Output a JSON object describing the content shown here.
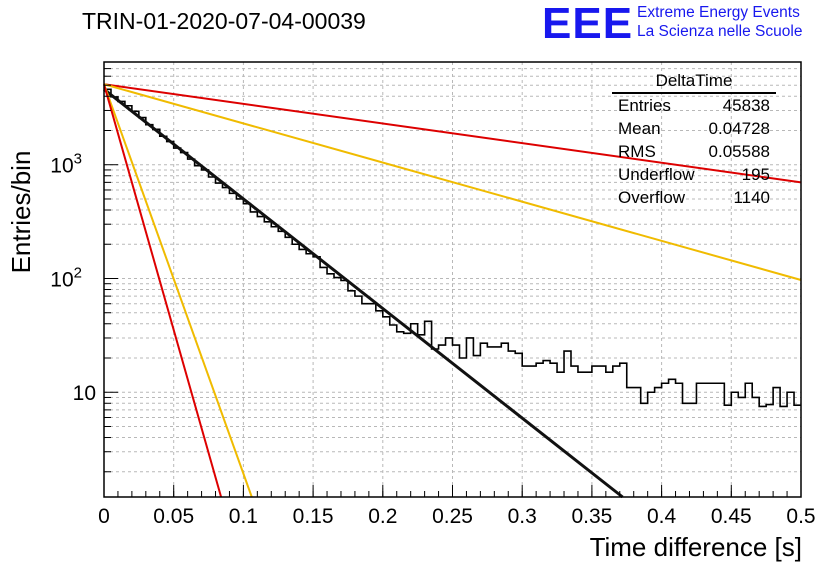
{
  "plot_title": "TRIN-01-2020-07-04-00039",
  "logo": {
    "mark": "EEE",
    "line1": "Extreme Energy Events",
    "line2": "La Scienza nelle Scuole",
    "color": "#1818ee"
  },
  "stats": {
    "title": "DeltaTime",
    "rows": [
      {
        "label": "Entries",
        "value": "45838"
      },
      {
        "label": "Mean",
        "value": "0.04728"
      },
      {
        "label": "RMS",
        "value": "0.05588"
      },
      {
        "label": "Underflow",
        "value": "195"
      },
      {
        "label": "Overflow",
        "value": "1140"
      }
    ]
  },
  "chart_data": {
    "type": "line",
    "xlabel": "Time difference [s]",
    "ylabel": "Entries/bin",
    "xlim": [
      0,
      0.5
    ],
    "ylim": [
      1.2,
      8000
    ],
    "yscale": "log",
    "grid": true,
    "x_ticks": [
      "0",
      "0.05",
      "0.1",
      "0.15",
      "0.2",
      "0.25",
      "0.3",
      "0.35",
      "0.4",
      "0.45",
      "0.5"
    ],
    "y_ticks": [
      {
        "value": 10,
        "label": "10"
      },
      {
        "value": 100,
        "label": "10",
        "exp": "2"
      },
      {
        "value": 1000,
        "label": "10",
        "exp": "3"
      }
    ],
    "histogram": {
      "bin_width": 0.005,
      "color": "#000000",
      "values": [
        4600,
        3950,
        3600,
        3300,
        2950,
        2600,
        2250,
        2050,
        1780,
        1600,
        1400,
        1280,
        1120,
        980,
        900,
        780,
        690,
        630,
        560,
        500,
        455,
        385,
        350,
        315,
        285,
        260,
        230,
        200,
        180,
        165,
        155,
        125,
        110,
        102,
        96,
        78,
        70,
        60,
        60,
        52,
        46,
        39,
        34,
        33,
        40,
        32,
        42,
        24,
        26,
        30,
        26,
        20,
        30,
        21,
        27,
        25,
        25,
        27,
        23,
        22,
        17,
        17,
        18,
        19,
        18,
        15,
        23,
        17,
        15,
        15,
        17,
        17,
        15,
        17,
        18,
        11,
        11,
        8,
        10,
        11,
        12,
        13,
        12,
        8,
        8,
        12,
        12,
        12,
        12,
        7.7,
        10,
        9,
        12,
        9,
        7.5,
        7.8,
        11,
        7.5,
        10,
        7.7
      ]
    },
    "series": [
      {
        "color": "#111111",
        "x": [
          0,
          0.372
        ],
        "y": [
          4600,
          1.2
        ]
      },
      {
        "color": "#dd0000",
        "x": [
          0,
          0.5
        ],
        "y": [
          5100,
          700
        ]
      },
      {
        "color": "#f0bb00",
        "x": [
          0,
          0.5
        ],
        "y": [
          5100,
          97
        ]
      },
      {
        "color": "#f0bb00",
        "x": [
          0,
          0.106
        ],
        "y": [
          5100,
          1.2
        ]
      },
      {
        "color": "#dd0000",
        "x": [
          0,
          0.084
        ],
        "y": [
          5100,
          1.2
        ]
      }
    ]
  }
}
